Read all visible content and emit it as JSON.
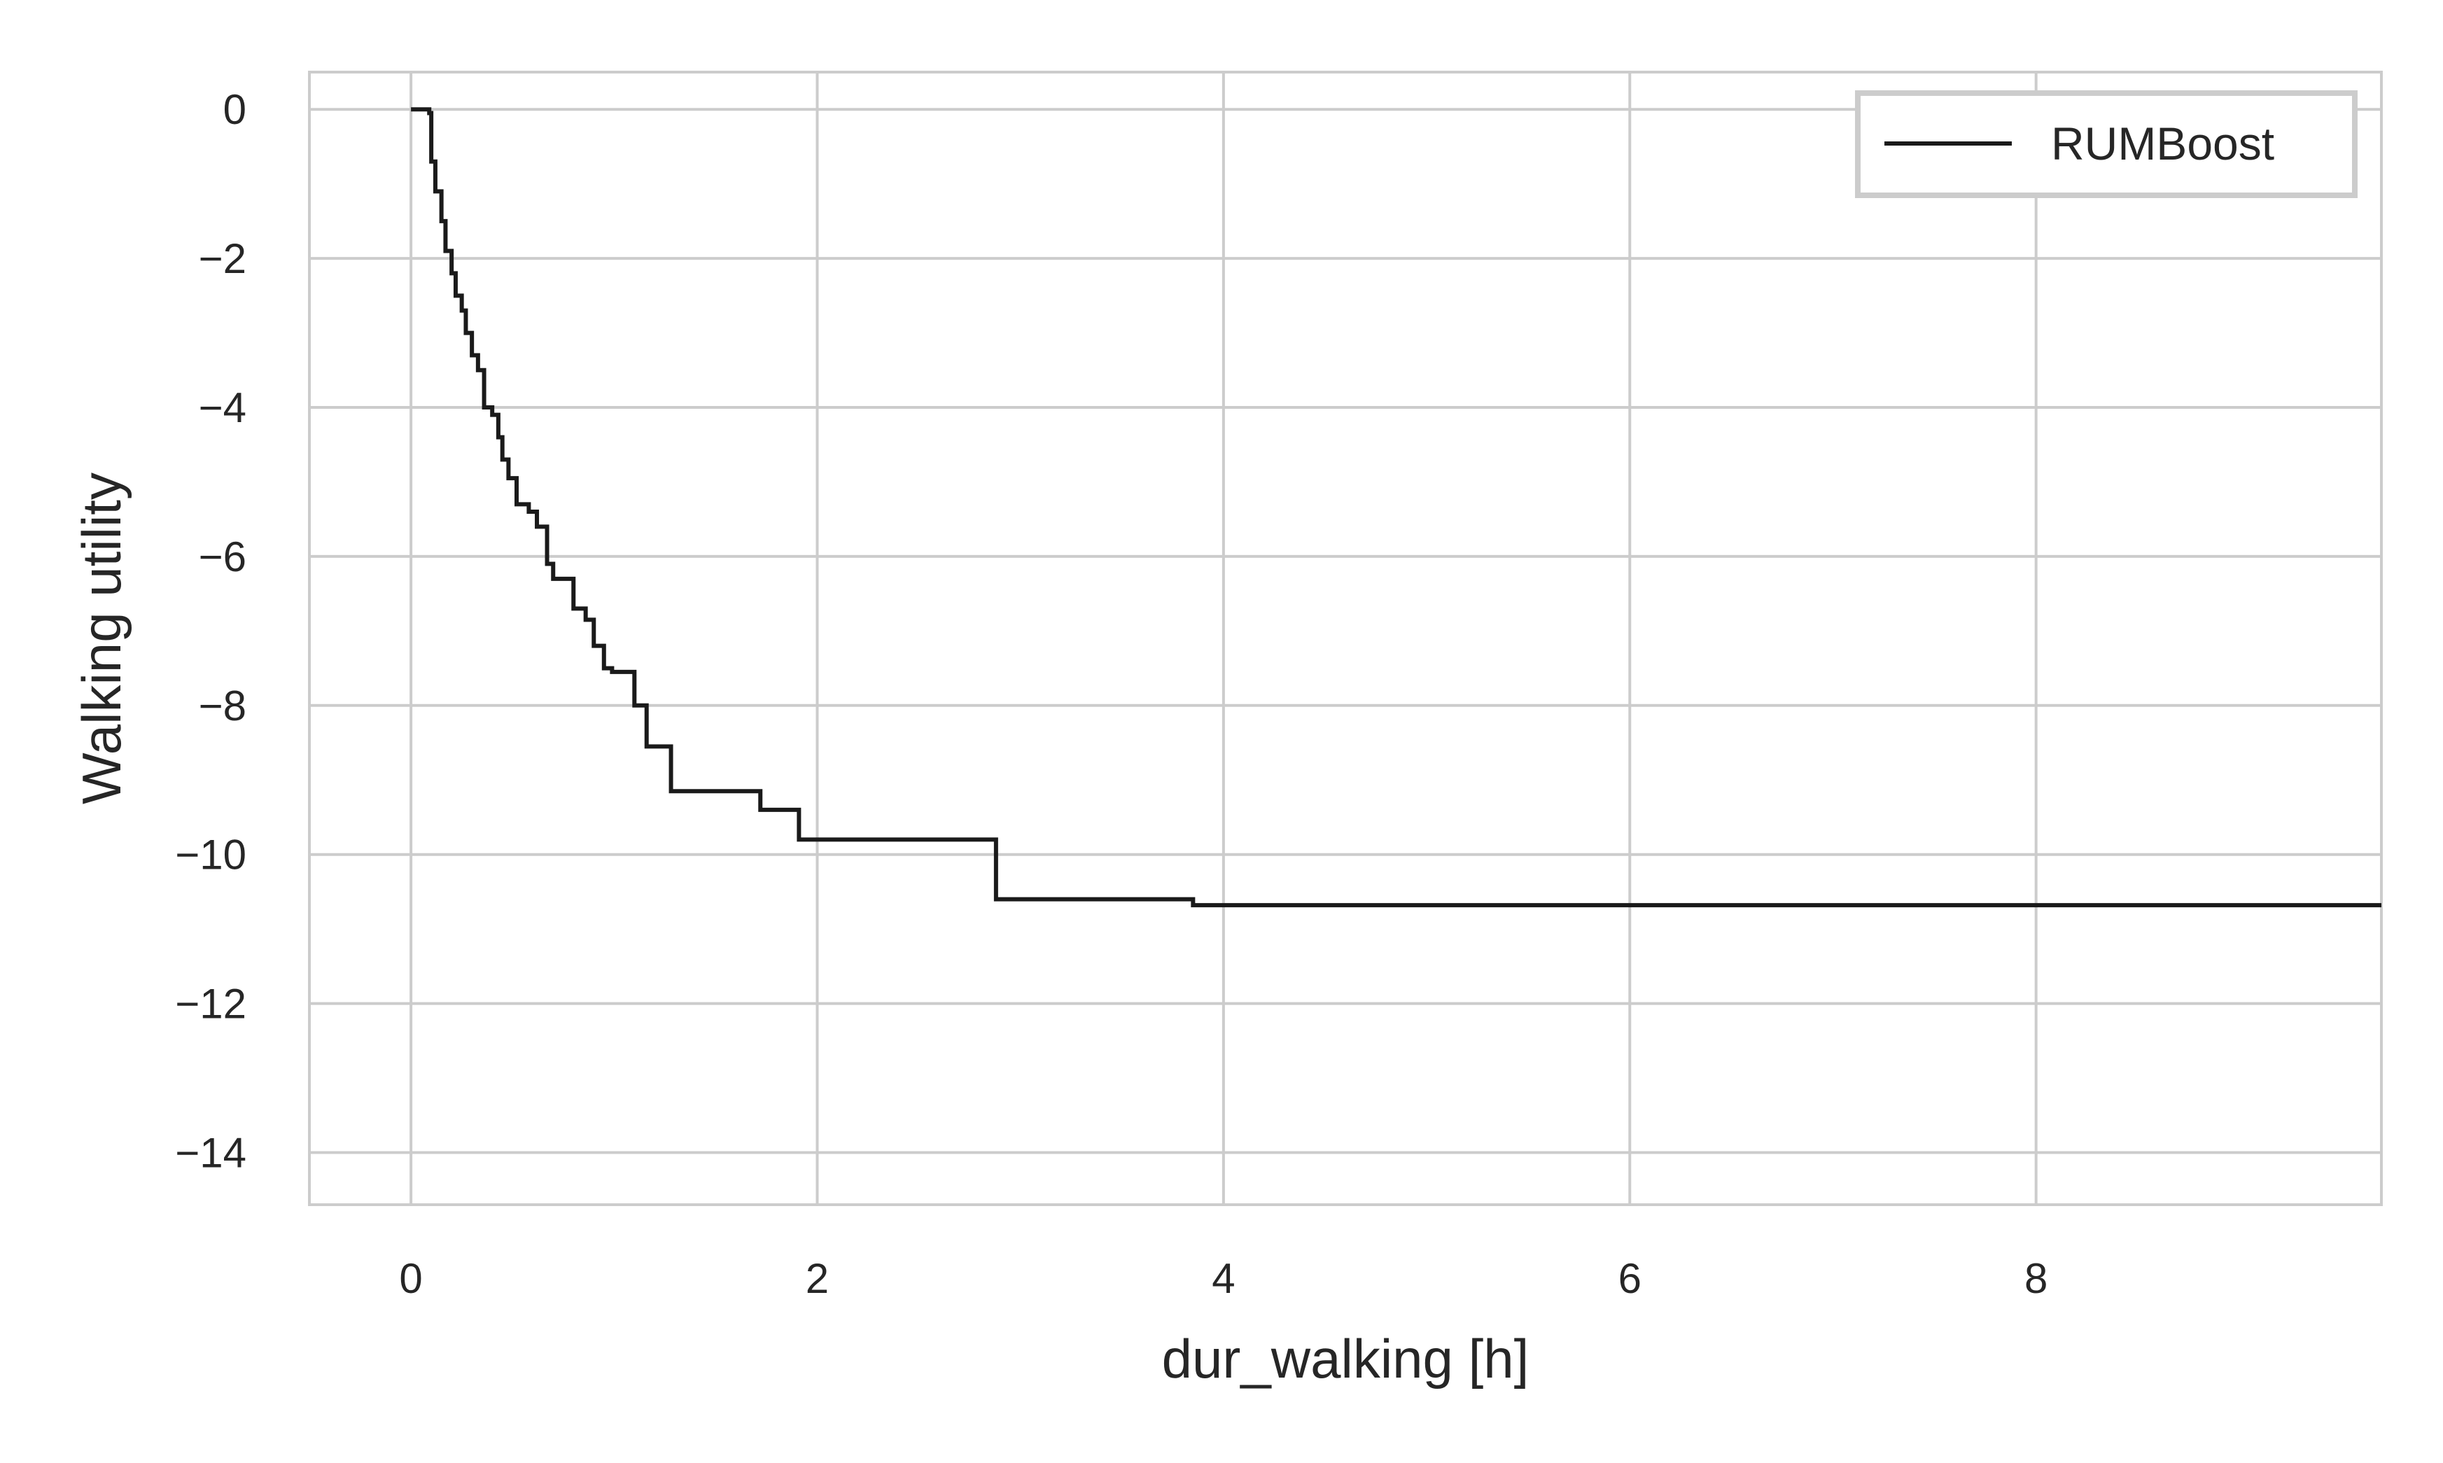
{
  "chart_data": {
    "type": "line",
    "title": "",
    "xlabel": "dur_walking [h]",
    "ylabel": "Walking utility",
    "xlim": [
      -0.5,
      9.7
    ],
    "ylim": [
      -14.7,
      0.5
    ],
    "x_ticks": [
      0,
      2,
      4,
      6,
      8
    ],
    "y_ticks": [
      0,
      -2,
      -4,
      -6,
      -8,
      -10,
      -12,
      -14
    ],
    "x_tick_labels": [
      "0",
      "2",
      "4",
      "6",
      "8"
    ],
    "y_tick_labels": [
      "0",
      "−2",
      "−4",
      "−6",
      "−8",
      "−10",
      "−12",
      "−14"
    ],
    "grid": true,
    "legend": {
      "position": "top-right",
      "entries": [
        "RUMBoost"
      ]
    },
    "series": [
      {
        "name": "RUMBoost",
        "color": "#1a1a1a",
        "step": true,
        "points": [
          [
            0.0,
            0.0
          ],
          [
            0.08,
            0.0
          ],
          [
            0.09,
            -0.05
          ],
          [
            0.1,
            -0.7
          ],
          [
            0.12,
            -1.1
          ],
          [
            0.15,
            -1.5
          ],
          [
            0.17,
            -1.9
          ],
          [
            0.2,
            -2.2
          ],
          [
            0.22,
            -2.5
          ],
          [
            0.25,
            -2.7
          ],
          [
            0.27,
            -3.0
          ],
          [
            0.3,
            -3.3
          ],
          [
            0.33,
            -3.5
          ],
          [
            0.36,
            -4.0
          ],
          [
            0.4,
            -4.1
          ],
          [
            0.43,
            -4.4
          ],
          [
            0.45,
            -4.7
          ],
          [
            0.48,
            -4.95
          ],
          [
            0.52,
            -5.3
          ],
          [
            0.58,
            -5.4
          ],
          [
            0.62,
            -5.6
          ],
          [
            0.67,
            -6.1
          ],
          [
            0.7,
            -6.3
          ],
          [
            0.8,
            -6.7
          ],
          [
            0.86,
            -6.85
          ],
          [
            0.9,
            -7.2
          ],
          [
            0.95,
            -7.5
          ],
          [
            0.99,
            -7.55
          ],
          [
            1.1,
            -8.0
          ],
          [
            1.16,
            -8.55
          ],
          [
            1.28,
            -9.15
          ],
          [
            1.72,
            -9.4
          ],
          [
            1.91,
            -9.8
          ],
          [
            2.88,
            -10.6
          ],
          [
            3.85,
            -10.68
          ],
          [
            9.7,
            -10.68
          ]
        ]
      }
    ]
  }
}
